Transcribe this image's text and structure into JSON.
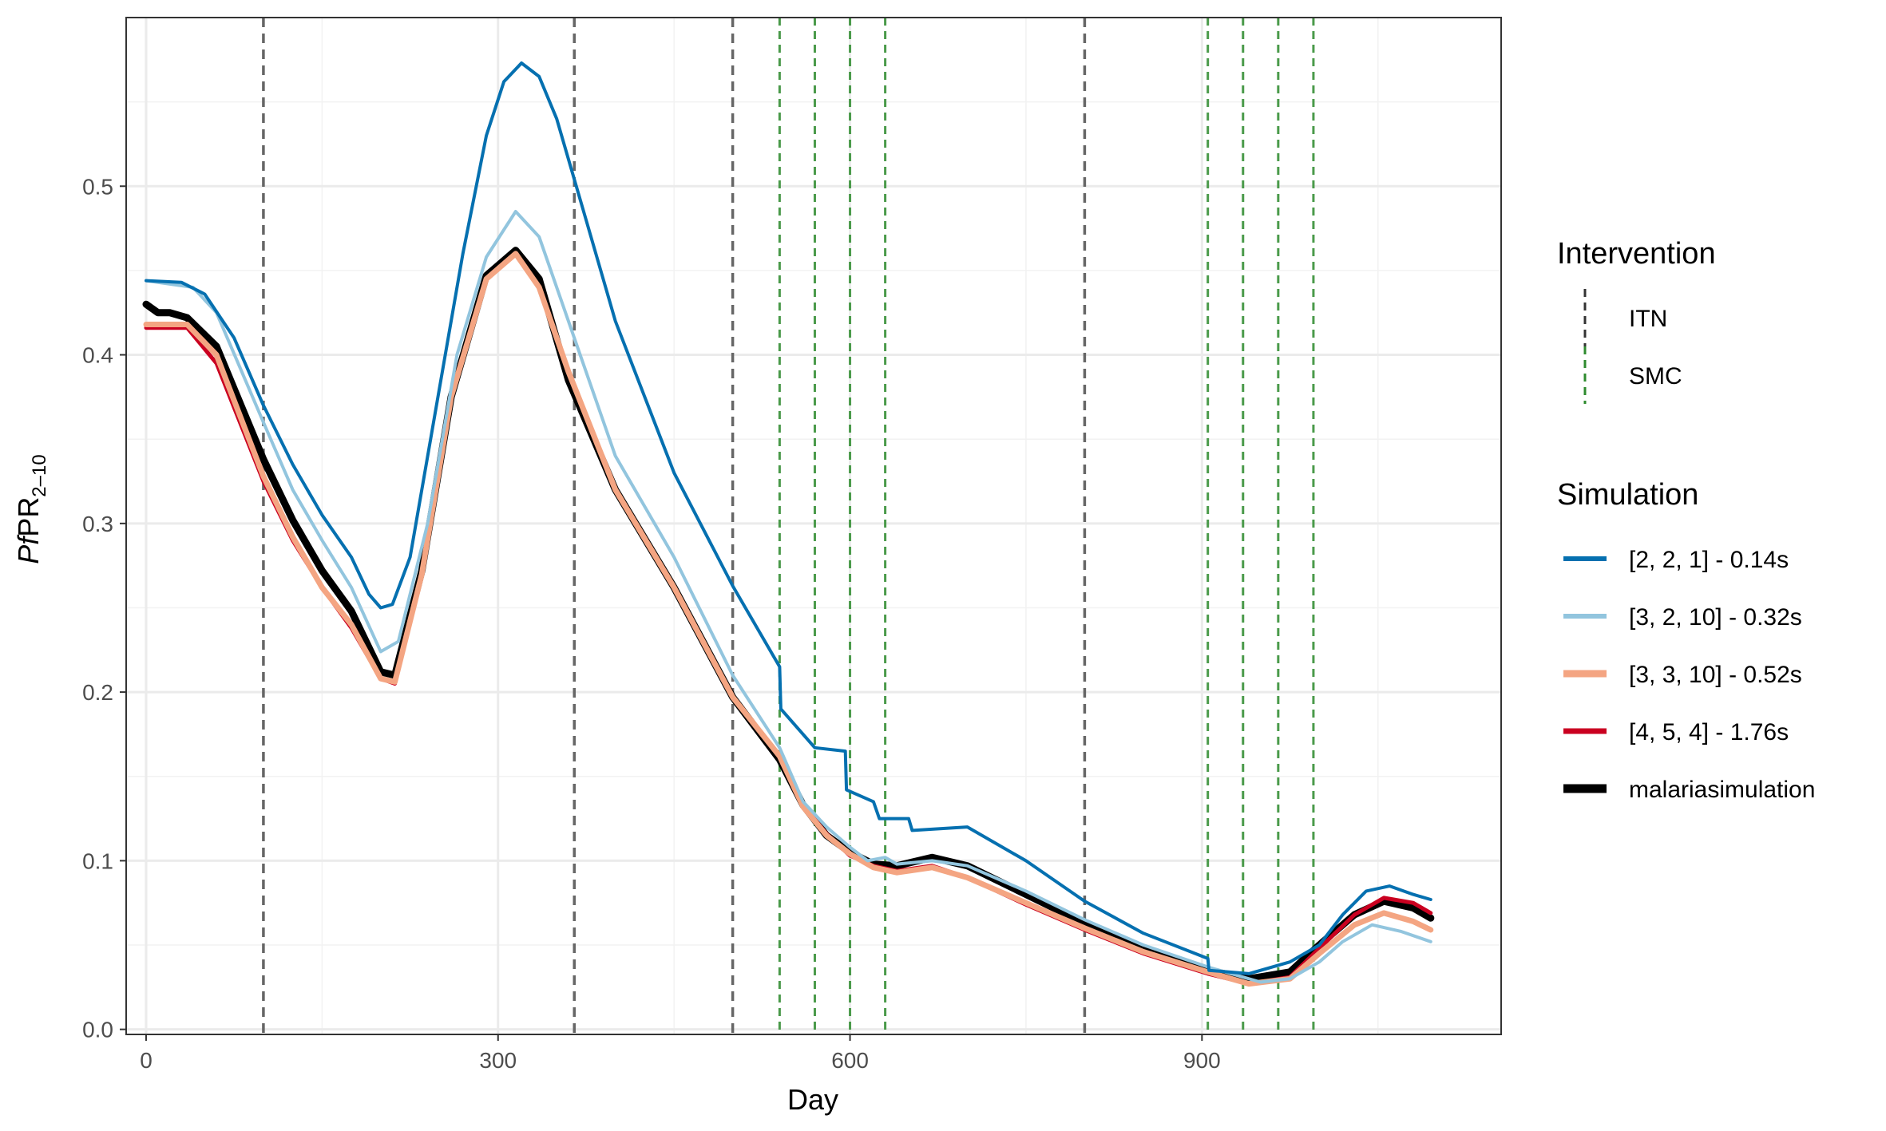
{
  "chart_data": {
    "type": "line",
    "xlabel": "Day",
    "ylabel": {
      "italic": "Pf",
      "main": "PR",
      "subscript": "2–10"
    },
    "xlim": [
      -17,
      1155
    ],
    "ylim": [
      -0.003,
      0.6
    ],
    "x_ticks": [
      0,
      300,
      600,
      900
    ],
    "y_ticks": [
      0.0,
      0.1,
      0.2,
      0.3,
      0.4,
      0.5
    ],
    "y_tick_labels": [
      "0.0",
      "0.1",
      "0.2",
      "0.3",
      "0.4",
      "0.5"
    ],
    "grid": true,
    "legend_position": "right",
    "interventions": {
      "title": "Intervention",
      "entries": [
        {
          "name": "ITN",
          "color": "#333333",
          "days": [
            100,
            365,
            500,
            800
          ]
        },
        {
          "name": "SMC",
          "color": "#2e8b2e",
          "days": [
            540,
            570,
            600,
            630,
            905,
            935,
            965,
            995
          ]
        }
      ]
    },
    "simulation_legend_title": "Simulation",
    "series": [
      {
        "name": "[2, 2, 1] - 0.14s",
        "color": "#0570b0",
        "width": 4,
        "points": [
          [
            0,
            0.444
          ],
          [
            30,
            0.443
          ],
          [
            50,
            0.436
          ],
          [
            75,
            0.41
          ],
          [
            100,
            0.37
          ],
          [
            125,
            0.335
          ],
          [
            150,
            0.305
          ],
          [
            175,
            0.28
          ],
          [
            190,
            0.258
          ],
          [
            200,
            0.25
          ],
          [
            210,
            0.252
          ],
          [
            225,
            0.28
          ],
          [
            250,
            0.38
          ],
          [
            270,
            0.46
          ],
          [
            290,
            0.53
          ],
          [
            305,
            0.562
          ],
          [
            320,
            0.573
          ],
          [
            335,
            0.565
          ],
          [
            350,
            0.54
          ],
          [
            375,
            0.48
          ],
          [
            400,
            0.42
          ],
          [
            450,
            0.33
          ],
          [
            500,
            0.263
          ],
          [
            540,
            0.215
          ],
          [
            541,
            0.19
          ],
          [
            570,
            0.167
          ],
          [
            596,
            0.165
          ],
          [
            597,
            0.142
          ],
          [
            620,
            0.135
          ],
          [
            625,
            0.125
          ],
          [
            650,
            0.125
          ],
          [
            653,
            0.118
          ],
          [
            700,
            0.12
          ],
          [
            750,
            0.1
          ],
          [
            800,
            0.076
          ],
          [
            850,
            0.057
          ],
          [
            905,
            0.042
          ],
          [
            906,
            0.035
          ],
          [
            940,
            0.033
          ],
          [
            975,
            0.04
          ],
          [
            1000,
            0.05
          ],
          [
            1020,
            0.068
          ],
          [
            1040,
            0.082
          ],
          [
            1060,
            0.085
          ],
          [
            1080,
            0.08
          ],
          [
            1095,
            0.077
          ]
        ]
      },
      {
        "name": "[3, 2, 10] - 0.32s",
        "color": "#92c5de",
        "width": 4,
        "points": [
          [
            0,
            0.444
          ],
          [
            40,
            0.44
          ],
          [
            60,
            0.425
          ],
          [
            100,
            0.36
          ],
          [
            125,
            0.32
          ],
          [
            150,
            0.29
          ],
          [
            175,
            0.262
          ],
          [
            200,
            0.224
          ],
          [
            215,
            0.23
          ],
          [
            240,
            0.3
          ],
          [
            265,
            0.4
          ],
          [
            290,
            0.458
          ],
          [
            315,
            0.485
          ],
          [
            335,
            0.47
          ],
          [
            360,
            0.42
          ],
          [
            400,
            0.34
          ],
          [
            450,
            0.28
          ],
          [
            500,
            0.21
          ],
          [
            540,
            0.167
          ],
          [
            560,
            0.135
          ],
          [
            580,
            0.12
          ],
          [
            600,
            0.108
          ],
          [
            615,
            0.1
          ],
          [
            630,
            0.102
          ],
          [
            640,
            0.098
          ],
          [
            670,
            0.1
          ],
          [
            700,
            0.097
          ],
          [
            750,
            0.082
          ],
          [
            800,
            0.065
          ],
          [
            850,
            0.05
          ],
          [
            905,
            0.037
          ],
          [
            930,
            0.032
          ],
          [
            950,
            0.028
          ],
          [
            975,
            0.03
          ],
          [
            1000,
            0.04
          ],
          [
            1020,
            0.052
          ],
          [
            1045,
            0.062
          ],
          [
            1070,
            0.058
          ],
          [
            1095,
            0.052
          ]
        ]
      },
      {
        "name": "[3, 3, 10] - 0.52s",
        "color": "#f4a582",
        "width": 7,
        "points": [
          [
            0,
            0.418
          ],
          [
            35,
            0.418
          ],
          [
            60,
            0.4
          ],
          [
            100,
            0.328
          ],
          [
            125,
            0.292
          ],
          [
            150,
            0.262
          ],
          [
            175,
            0.24
          ],
          [
            200,
            0.208
          ],
          [
            212,
            0.206
          ],
          [
            235,
            0.27
          ],
          [
            260,
            0.375
          ],
          [
            290,
            0.445
          ],
          [
            315,
            0.46
          ],
          [
            335,
            0.44
          ],
          [
            360,
            0.39
          ],
          [
            400,
            0.32
          ],
          [
            450,
            0.262
          ],
          [
            500,
            0.197
          ],
          [
            540,
            0.162
          ],
          [
            560,
            0.132
          ],
          [
            580,
            0.115
          ],
          [
            600,
            0.104
          ],
          [
            620,
            0.096
          ],
          [
            640,
            0.093
          ],
          [
            670,
            0.096
          ],
          [
            700,
            0.09
          ],
          [
            750,
            0.075
          ],
          [
            800,
            0.06
          ],
          [
            850,
            0.046
          ],
          [
            905,
            0.034
          ],
          [
            940,
            0.027
          ],
          [
            975,
            0.03
          ],
          [
            1000,
            0.045
          ],
          [
            1030,
            0.062
          ],
          [
            1055,
            0.069
          ],
          [
            1080,
            0.064
          ],
          [
            1095,
            0.059
          ]
        ]
      },
      {
        "name": "[4, 5, 4] - 1.76s",
        "color": "#ca0020",
        "width": 5,
        "points": [
          [
            0,
            0.416
          ],
          [
            35,
            0.416
          ],
          [
            60,
            0.395
          ],
          [
            100,
            0.325
          ],
          [
            125,
            0.29
          ],
          [
            150,
            0.262
          ],
          [
            175,
            0.238
          ],
          [
            200,
            0.208
          ],
          [
            212,
            0.205
          ],
          [
            235,
            0.27
          ],
          [
            260,
            0.375
          ],
          [
            290,
            0.445
          ],
          [
            315,
            0.46
          ],
          [
            335,
            0.44
          ],
          [
            360,
            0.39
          ],
          [
            400,
            0.32
          ],
          [
            450,
            0.262
          ],
          [
            500,
            0.197
          ],
          [
            540,
            0.162
          ],
          [
            560,
            0.133
          ],
          [
            580,
            0.116
          ],
          [
            600,
            0.103
          ],
          [
            620,
            0.097
          ],
          [
            640,
            0.094
          ],
          [
            670,
            0.097
          ],
          [
            700,
            0.09
          ],
          [
            750,
            0.074
          ],
          [
            800,
            0.059
          ],
          [
            850,
            0.045
          ],
          [
            905,
            0.033
          ],
          [
            940,
            0.027
          ],
          [
            975,
            0.031
          ],
          [
            1000,
            0.048
          ],
          [
            1030,
            0.068
          ],
          [
            1055,
            0.078
          ],
          [
            1080,
            0.075
          ],
          [
            1095,
            0.069
          ]
        ]
      },
      {
        "name": "malariasimulation",
        "color": "#000000",
        "width": 9,
        "points": [
          [
            0,
            0.43
          ],
          [
            10,
            0.425
          ],
          [
            20,
            0.425
          ],
          [
            35,
            0.422
          ],
          [
            60,
            0.405
          ],
          [
            100,
            0.338
          ],
          [
            125,
            0.302
          ],
          [
            150,
            0.272
          ],
          [
            175,
            0.248
          ],
          [
            200,
            0.212
          ],
          [
            212,
            0.21
          ],
          [
            235,
            0.272
          ],
          [
            260,
            0.375
          ],
          [
            290,
            0.447
          ],
          [
            315,
            0.462
          ],
          [
            335,
            0.445
          ],
          [
            360,
            0.385
          ],
          [
            400,
            0.32
          ],
          [
            450,
            0.262
          ],
          [
            500,
            0.197
          ],
          [
            540,
            0.16
          ],
          [
            560,
            0.133
          ],
          [
            580,
            0.115
          ],
          [
            600,
            0.105
          ],
          [
            620,
            0.098
          ],
          [
            640,
            0.097
          ],
          [
            670,
            0.102
          ],
          [
            700,
            0.097
          ],
          [
            750,
            0.08
          ],
          [
            800,
            0.063
          ],
          [
            850,
            0.047
          ],
          [
            905,
            0.035
          ],
          [
            940,
            0.03
          ],
          [
            975,
            0.034
          ],
          [
            1000,
            0.05
          ],
          [
            1030,
            0.068
          ],
          [
            1055,
            0.076
          ],
          [
            1080,
            0.072
          ],
          [
            1095,
            0.066
          ]
        ]
      }
    ]
  }
}
